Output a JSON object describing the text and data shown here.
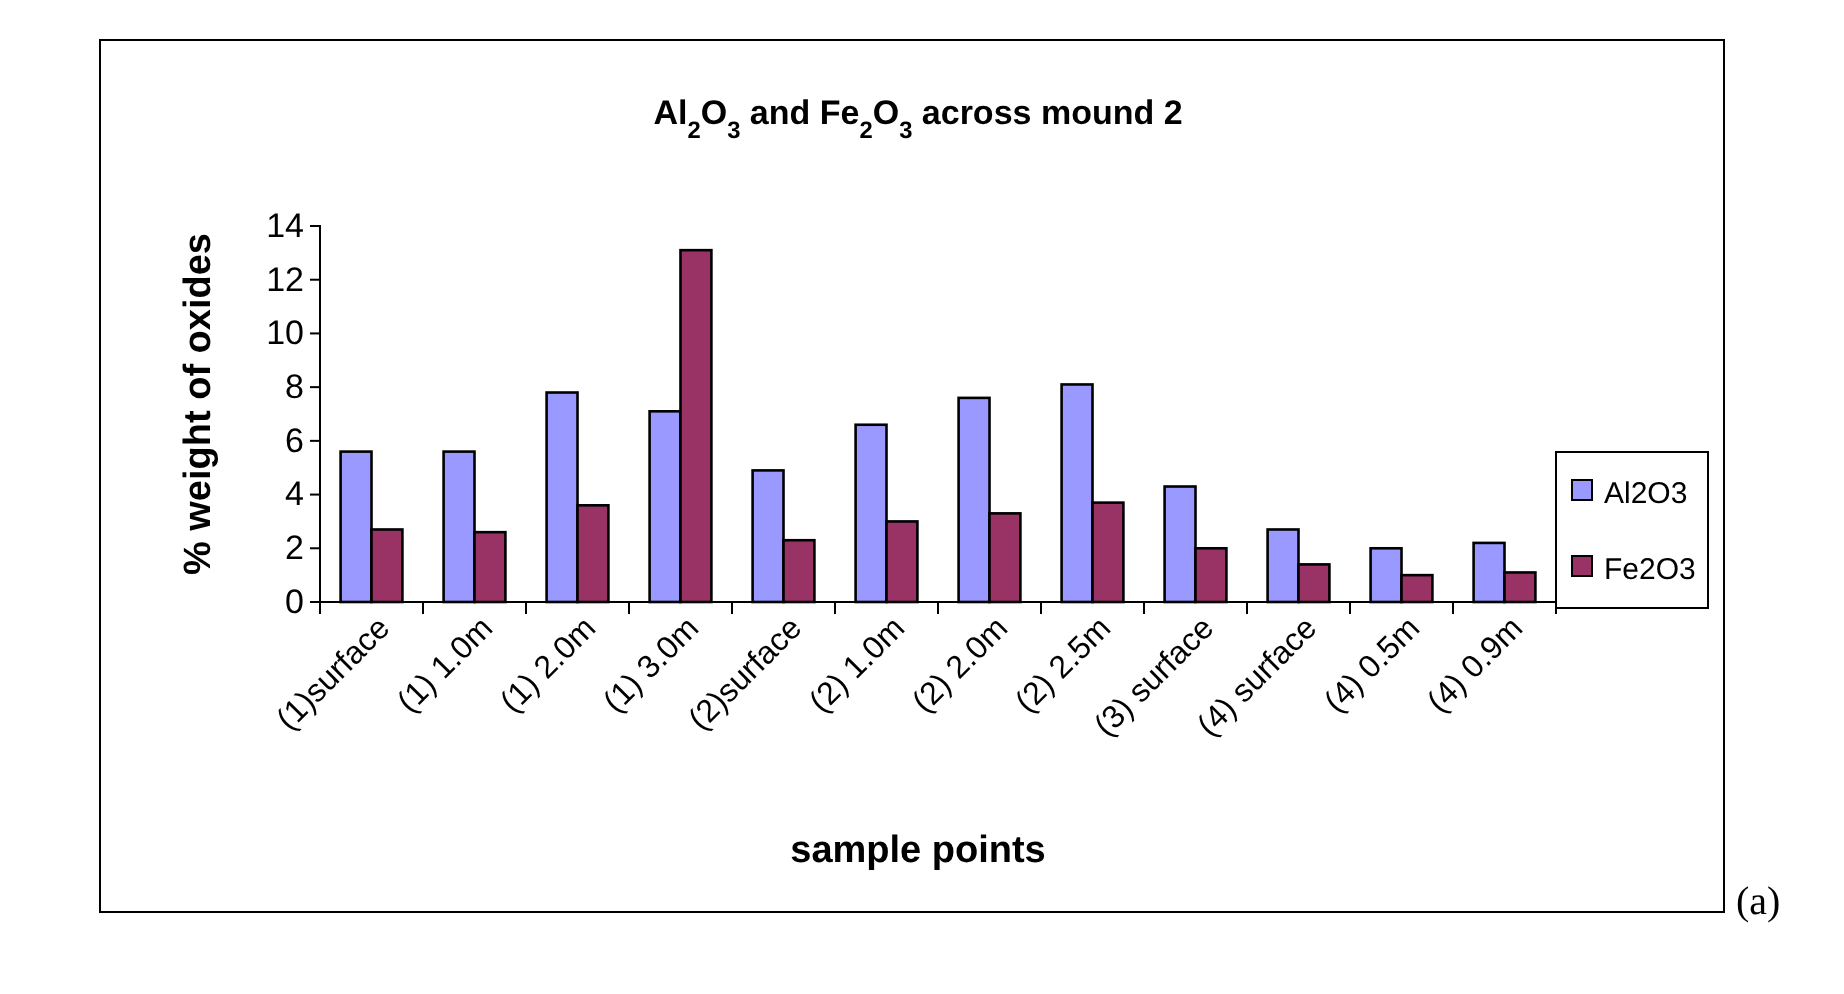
{
  "chart_data": {
    "type": "bar",
    "title": "Al$_{2}$O$_{3}$ and Fe$_{2}$O$_{3}$ across mound 2",
    "xlabel": "sample points",
    "ylabel": "% weight of oxides",
    "categories": [
      "(1)surface",
      "(1) 1.0m",
      "(1) 2.0m",
      "(1) 3.0m",
      "(2)surface",
      "(2) 1.0m",
      "(2) 2.0m",
      "(2) 2.5m",
      "(3) surface",
      "(4) surface",
      "(4) 0.5m",
      "(4) 0.9m"
    ],
    "series": [
      {
        "name": "Al2O3",
        "color": "#9999ff",
        "values": [
          5.6,
          5.6,
          7.8,
          7.1,
          4.9,
          6.6,
          7.6,
          8.1,
          4.3,
          2.7,
          2.0,
          2.2
        ]
      },
      {
        "name": "Fe2O3",
        "color": "#993366",
        "values": [
          2.7,
          2.6,
          3.6,
          13.1,
          2.3,
          3.0,
          3.3,
          3.7,
          2.0,
          1.4,
          1.0,
          1.1
        ]
      }
    ],
    "ylim": [
      0,
      14
    ],
    "yticks": [
      0,
      2,
      4,
      6,
      8,
      10,
      12,
      14
    ],
    "grid": false,
    "legend": "right",
    "annotations": [
      "(a)"
    ]
  }
}
